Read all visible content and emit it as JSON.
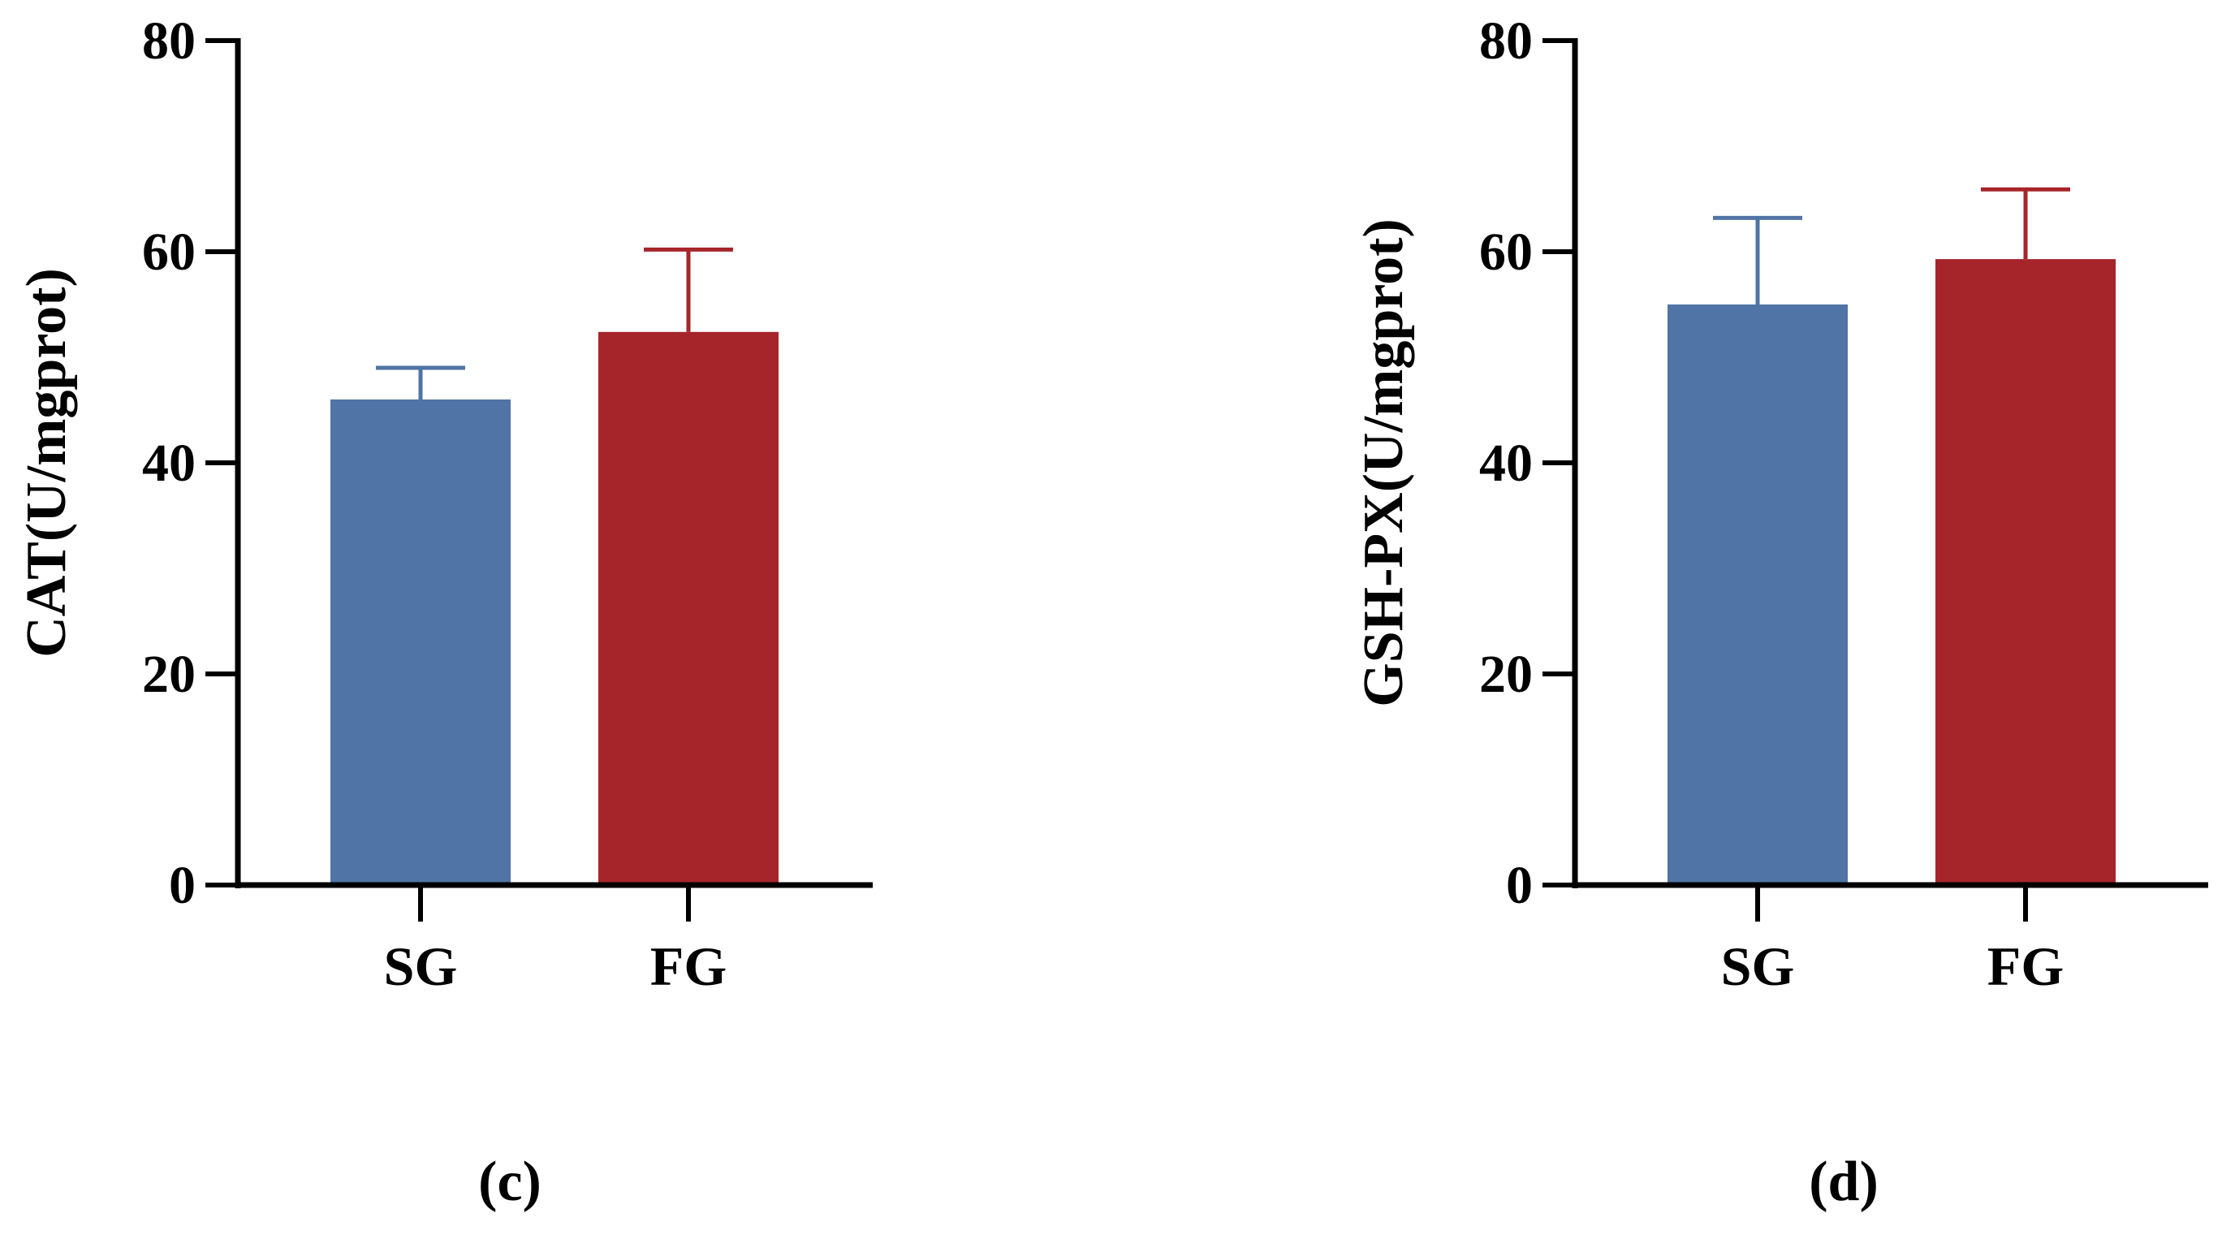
{
  "chart_data": [
    {
      "type": "bar",
      "panel_label": "(c)",
      "title": "",
      "xlabel": "",
      "ylabel": "CAT(U/mgprot)",
      "ylim": [
        0,
        80
      ],
      "yticks": [
        "0",
        "20",
        "40",
        "60",
        "80"
      ],
      "categories": [
        "SG",
        "FG"
      ],
      "values": [
        46,
        52.4
      ],
      "errors": [
        3,
        7.8
      ],
      "colors": [
        "#4f74a5",
        "#a5252b"
      ],
      "grid": false
    },
    {
      "type": "bar",
      "panel_label": "(d)",
      "title": "",
      "xlabel": "",
      "ylabel": "GSH-PX(U/mgprot)",
      "ylim": [
        0,
        80
      ],
      "yticks": [
        "0",
        "20",
        "40",
        "60",
        "80"
      ],
      "categories": [
        "SG",
        "FG"
      ],
      "values": [
        55,
        59.3
      ],
      "errors": [
        8.2,
        6.6
      ],
      "colors": [
        "#4f74a5",
        "#a5252b"
      ],
      "grid": false
    }
  ]
}
